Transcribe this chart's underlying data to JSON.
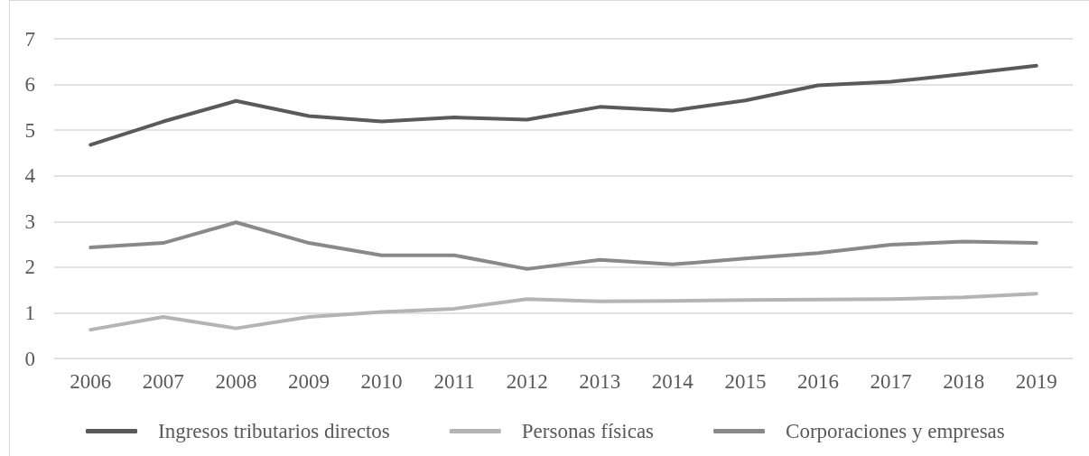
{
  "chart_data": {
    "type": "line",
    "categories": [
      "2006",
      "2007",
      "2008",
      "2009",
      "2010",
      "2011",
      "2012",
      "2013",
      "2014",
      "2015",
      "2016",
      "2017",
      "2018",
      "2019"
    ],
    "series": [
      {
        "name": "Ingresos tributarios directos",
        "color": "#5a5a5a",
        "values": [
          4.68,
          5.19,
          5.64,
          5.31,
          5.19,
          5.28,
          5.23,
          5.51,
          5.43,
          5.65,
          5.98,
          6.06,
          6.23,
          6.41
        ]
      },
      {
        "name": "Personas físicas",
        "color": "#b4b4b4",
        "values": [
          0.63,
          0.91,
          0.66,
          0.91,
          1.02,
          1.09,
          1.3,
          1.25,
          1.26,
          1.28,
          1.29,
          1.3,
          1.34,
          1.42
        ]
      },
      {
        "name": "Corporaciones y empresas",
        "color": "#898989",
        "values": [
          2.43,
          2.53,
          2.98,
          2.53,
          2.26,
          2.26,
          1.96,
          2.16,
          2.06,
          2.19,
          2.31,
          2.49,
          2.56,
          2.53
        ]
      }
    ],
    "ylim": [
      0,
      7
    ],
    "yticks": [
      0,
      1,
      2,
      3,
      4,
      5,
      6,
      7
    ],
    "grid": "y",
    "legend": "bottom",
    "marker": "none",
    "line_style": "solid"
  }
}
